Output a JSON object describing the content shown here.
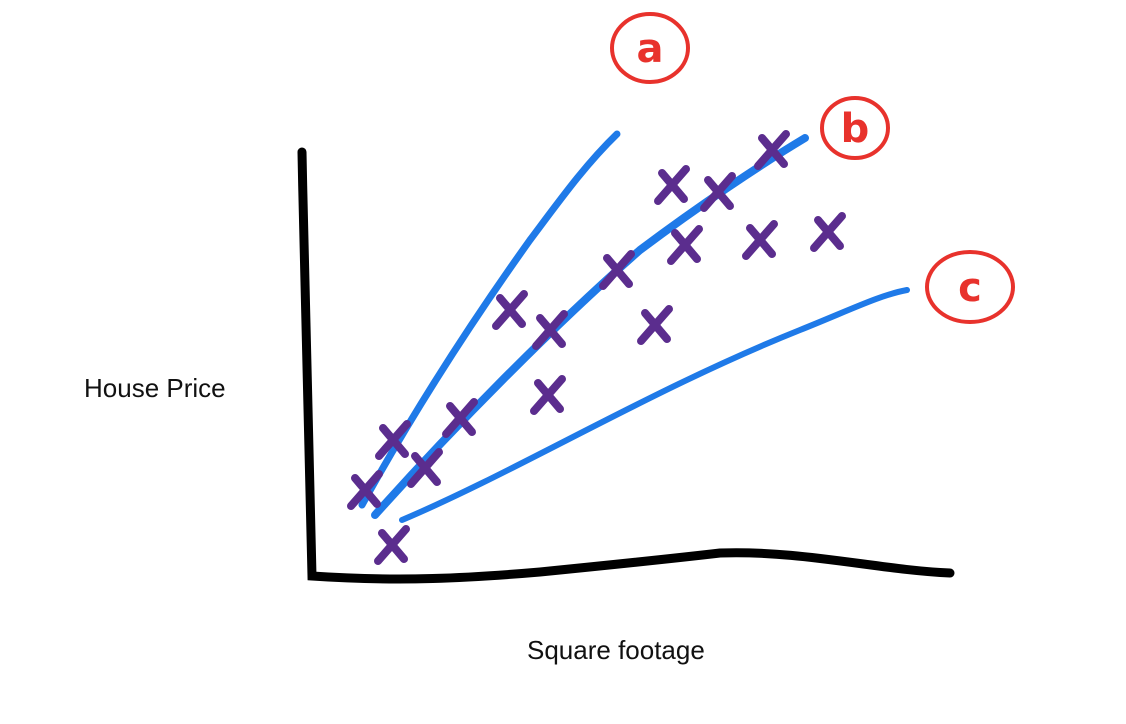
{
  "axes": {
    "x_label": "Square footage",
    "y_label": "House Price"
  },
  "lines": [
    {
      "label": "a"
    },
    {
      "label": "b"
    },
    {
      "label": "c"
    }
  ]
}
